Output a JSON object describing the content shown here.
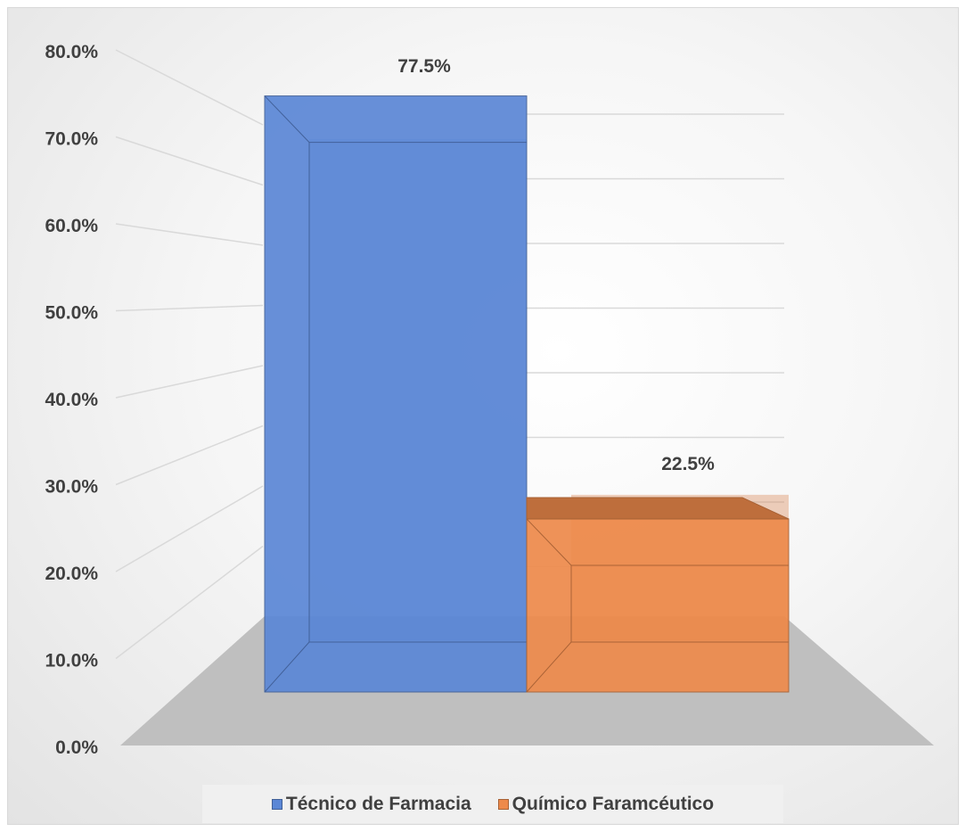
{
  "chart_data": {
    "type": "bar",
    "categories": [
      "Técnico de Farmacia",
      "Químico Faramcéutico"
    ],
    "series": [
      {
        "name": "Técnico de Farmacia",
        "values": [
          77.5,
          null
        ],
        "color": "#5b87d6"
      },
      {
        "name": "Químico Faramcéutico",
        "values": [
          null,
          22.5
        ],
        "color": "#ee8a4b"
      }
    ],
    "data_labels": [
      "77.5%",
      "22.5%"
    ],
    "yticks": [
      "0.0%",
      "10.0%",
      "20.0%",
      "30.0%",
      "40.0%",
      "50.0%",
      "60.0%",
      "70.0%",
      "80.0%"
    ],
    "ylim": [
      0,
      80
    ],
    "grid": true,
    "legend_position": "bottom",
    "style": "3d-clustered-column"
  }
}
